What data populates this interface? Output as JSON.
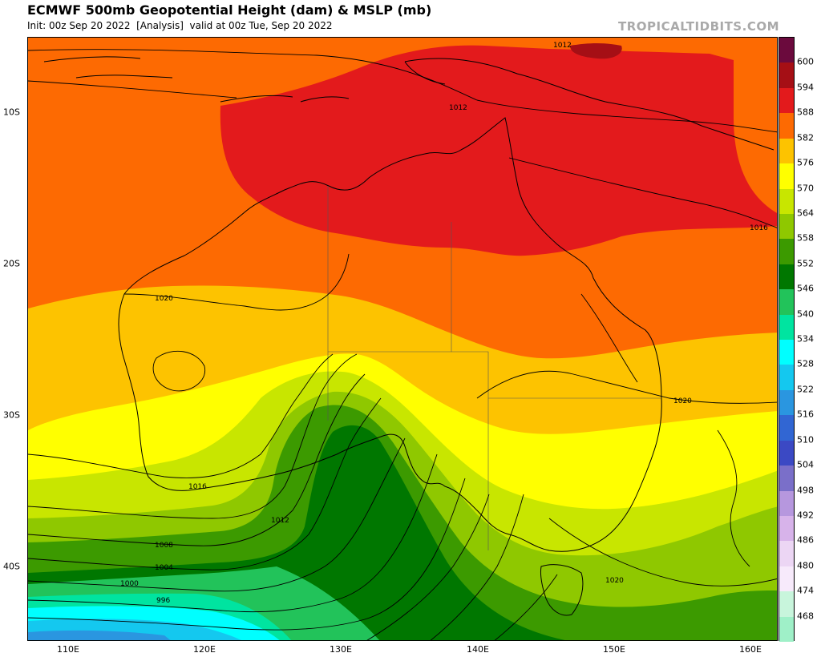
{
  "header": {
    "title": "ECMWF 500mb Geopotential Height (dam) & MSLP (mb)",
    "subtitle": "Init: 00z Sep 20 2022  [Analysis]  valid at 00z Tue, Sep 20 2022",
    "brand": "TROPICALTIDBITS.COM"
  },
  "axes": {
    "lat_labels": [
      "10S",
      "20S",
      "30S",
      "40S"
    ],
    "lon_labels": [
      "110E",
      "120E",
      "130E",
      "140E",
      "150E",
      "160E"
    ]
  },
  "colorbar": {
    "labels": [
      "600",
      "594",
      "588",
      "582",
      "576",
      "570",
      "564",
      "558",
      "552",
      "546",
      "540",
      "534",
      "528",
      "522",
      "516",
      "510",
      "504",
      "498",
      "492",
      "486",
      "480",
      "474",
      "468"
    ],
    "colors": [
      "#6b0a3d",
      "#a50f15",
      "#e31a1c",
      "#fd6a02",
      "#fdc300",
      "#ffff00",
      "#c8e600",
      "#8fc800",
      "#3c9a00",
      "#007700",
      "#22c35a",
      "#00e4a0",
      "#00ffff",
      "#14c8ef",
      "#2a96e0",
      "#3166d3",
      "#3b49c4",
      "#7a6fc9",
      "#b697de",
      "#d7b3ea",
      "#ecd6f4",
      "#f7eafb",
      "#c8f5dc",
      "#9ff0c8"
    ]
  },
  "map": {
    "isobar_labels": [
      "1012",
      "1012",
      "1016",
      "1020",
      "1016",
      "1012",
      "1008",
      "1004",
      "1000",
      "996",
      "1020",
      "1020"
    ]
  }
}
